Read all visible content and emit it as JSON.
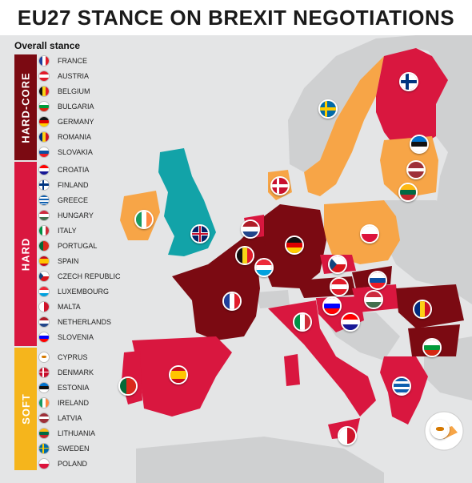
{
  "title": "EU27 STANCE ON BREXIT NEGOTIATIONS",
  "subtitle": "Overall stance",
  "colors": {
    "hardcore": "#7b0a12",
    "hard": "#d9173f",
    "soft": "#f7a547",
    "uk": "#12a3a8",
    "nonEU": "#cfd0d1",
    "sea": "#e2e3e4",
    "softBand": "#f5b51c"
  },
  "groups": [
    {
      "label": "HARD-CORE",
      "countries": [
        "FRANCE",
        "AUSTRIA",
        "BELGIUM",
        "BULGARIA",
        "GERMANY",
        "ROMANIA",
        "SLOVAKIA"
      ]
    },
    {
      "label": "HARD",
      "countries": [
        "CROATIA",
        "FINLAND",
        "GREECE",
        "HUNGARY",
        "ITALY",
        "PORTUGAL",
        "SPAIN",
        "CZECH REPUBLIC",
        "LUXEMBOURG",
        "MALTA",
        "NETHERLANDS",
        "SLOVENIA"
      ]
    },
    {
      "label": "SOFT",
      "countries": [
        "CYPRUS",
        "DENMARK",
        "ESTONIA",
        "IRELAND",
        "LATVIA",
        "LITHUANIA",
        "SWEDEN",
        "POLAND"
      ]
    }
  ]
}
